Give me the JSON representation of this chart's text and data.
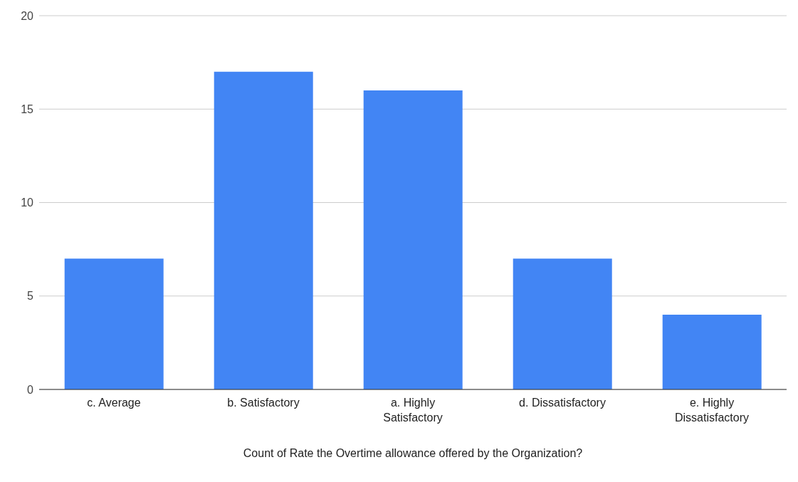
{
  "chart_data": {
    "type": "bar",
    "xlabel": "Count of Rate the Overtime allowance offered by the Organization?",
    "categories": [
      "c. Average",
      "b. Satisfactory",
      "a. Highly Satisfactory",
      "d. Dissatisfactory",
      "e. Highly Dissatisfactory"
    ],
    "values": [
      7,
      17,
      16,
      7,
      4
    ],
    "color": "#4285f4",
    "ylim": [
      0,
      20
    ],
    "yticks": [
      0,
      5,
      10,
      15,
      20
    ],
    "grid": "y",
    "legend": false
  }
}
